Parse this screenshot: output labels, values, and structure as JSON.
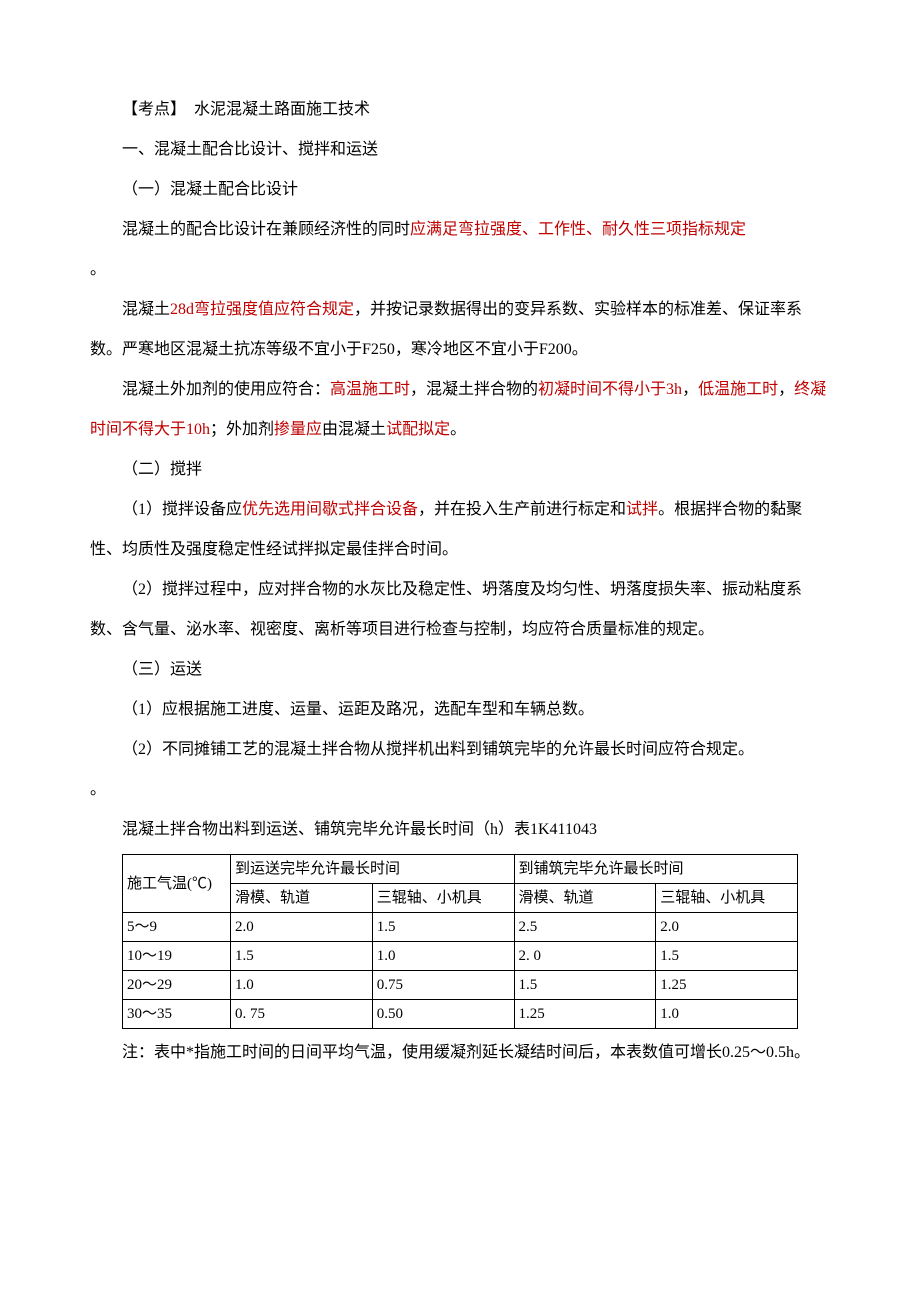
{
  "title_prefix": "【考点】　水泥混凝土路面施工技术",
  "h1": "一、混凝土配合比设计、搅拌和运送",
  "s1_title": "（一）混凝土配合比设计",
  "p1_a": "混凝土的配合比设计在兼顾经济性的同时",
  "p1_b": "应满足弯拉强度、工作性、耐久性三项指标规定",
  "p1_c": "。",
  "p2_a": "混凝土",
  "p2_b": "28d弯拉强度值应符合规定",
  "p2_c": "，并按记录数据得出的变异系数、实验样本的标准差、保证率系数。严寒地区混凝土抗冻等级不宜小于F250，寒冷地区不宜小于F200。",
  "p3_a": "混凝土外加剂的使用应符合：",
  "p3_b": "高温施工时",
  "p3_c": "，混凝土拌合物的",
  "p3_d": "初凝时间不得小于3h",
  "p3_e": "，",
  "p3_f": "低温施工时",
  "p3_g": "，",
  "p3_h": "终凝时间不得大于10h",
  "p3_i": "；外加剂",
  "p3_j": "掺量应",
  "p3_k": "由混凝土",
  "p3_l": "试配拟定",
  "p3_m": "。",
  "s2_title": "（二）搅拌",
  "p4_a": "（1）搅拌设备应",
  "p4_b": "优先选用间歇式拌合设备",
  "p4_c": "，并在投入生产前进行标定和",
  "p4_d": "试拌",
  "p4_e": "。根据拌合物的黏聚性、均质性及强度稳定性经试拌拟定最佳拌合时间。",
  "p5": "（2）搅拌过程中，应对拌合物的水灰比及稳定性、坍落度及均匀性、坍落度损失率、振动粘度系数、含气量、泌水率、视密度、离析等项目进行检查与控制，均应符合质量标准的规定。",
  "s3_title": "（三）运送",
  "p6": "（1）应根据施工进度、运量、运距及路况，选配车型和车辆总数。",
  "p7": "（2）不同摊铺工艺的混凝土拌合物从搅拌机出料到铺筑完毕的允许最长时间应符合规定。",
  "table_caption": "混凝土拌合物出料到运送、铺筑完毕允许最长时间（h）表1K411043",
  "table": {
    "header_temp": "施工气温(℃)",
    "header_g1": "到运送完毕允许最长时间",
    "header_g2": "到铺筑完毕允许最长时间",
    "sub_a": "滑模、轨道",
    "sub_b": "三辊轴、小机具",
    "rows": [
      {
        "temp": "5～9",
        "a1": "2.0",
        "a2": "1.5",
        "b1": "2.5",
        "b2": "2.0"
      },
      {
        "temp": "10～19",
        "a1": "1.5",
        "a2": "1.0",
        "b1": "2. 0",
        "b2": "1.5"
      },
      {
        "temp": "20～29",
        "a1": "1.0",
        "a2": "0.75",
        "b1": "1.5",
        "b2": "1.25"
      },
      {
        "temp": "30～35",
        "a1": "0. 75",
        "a2": "0.50",
        "b1": "1.25",
        "b2": "1.0"
      }
    ]
  },
  "note": "注：表中*指施工时间的日间平均气温，使用缓凝剂延长凝结时间后，本表数值可增长0.25～0.5h。"
}
